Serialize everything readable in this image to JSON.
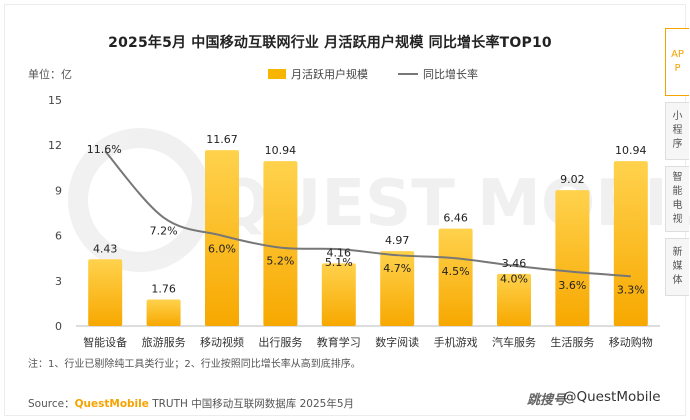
{
  "title": "2025年5月 中国移动互联网行业 月活跃用户规模 同比增长率TOP10",
  "unit_label": "单位：亿",
  "legend": {
    "bar": "月活跃用户规模",
    "line": "同比增长率"
  },
  "note": "注：1、行业已剔除纯工具类行业；2、行业按照同比增长率从高到底排序。",
  "source": {
    "prefix": "Source：",
    "brand": "QuestMobile",
    "rest": " TRUTH 中国移动互联网数据库 2025年5月"
  },
  "logo": {
    "mark": "跳搜号",
    "text": "@QuestMobile"
  },
  "watermark": "QUEST MOBILE",
  "side_tabs": [
    {
      "label": "APP",
      "active": true
    },
    {
      "label": "小程序",
      "active": false
    },
    {
      "label": "智能电视",
      "active": false
    },
    {
      "label": "新媒体",
      "active": false
    }
  ],
  "colors": {
    "bar": "#f7b500",
    "bar_light": "#ffd24d",
    "line": "#777777",
    "accent": "#f5a300"
  },
  "chart_data": {
    "type": "bar",
    "categories": [
      "智能设备",
      "旅游服务",
      "移动视频",
      "出行服务",
      "教育学习",
      "数字阅读",
      "手机游戏",
      "汽车服务",
      "生活服务",
      "移动购物"
    ],
    "series": [
      {
        "name": "月活跃用户规模",
        "type": "bar",
        "values": [
          4.43,
          1.76,
          11.67,
          10.94,
          4.16,
          4.97,
          6.46,
          3.46,
          9.02,
          10.94
        ],
        "labels": [
          "4.43",
          "1.76",
          "11.67",
          "10.94",
          "4.16",
          "4.97",
          "6.46",
          "3.46",
          "9.02",
          "10.94"
        ]
      },
      {
        "name": "同比增长率",
        "type": "line",
        "values": [
          11.6,
          7.2,
          6.0,
          5.2,
          5.1,
          4.7,
          4.5,
          4.0,
          3.6,
          3.3
        ],
        "labels": [
          "11.6%",
          "7.2%",
          "6.0%",
          "5.2%",
          "5.1%",
          "4.7%",
          "4.5%",
          "4.0%",
          "3.6%",
          "3.3%"
        ]
      }
    ],
    "ylim": [
      0,
      15
    ],
    "yticks": [
      "0",
      "3",
      "6",
      "9",
      "12",
      "15"
    ],
    "grid": false,
    "legend_position": "top-center"
  }
}
